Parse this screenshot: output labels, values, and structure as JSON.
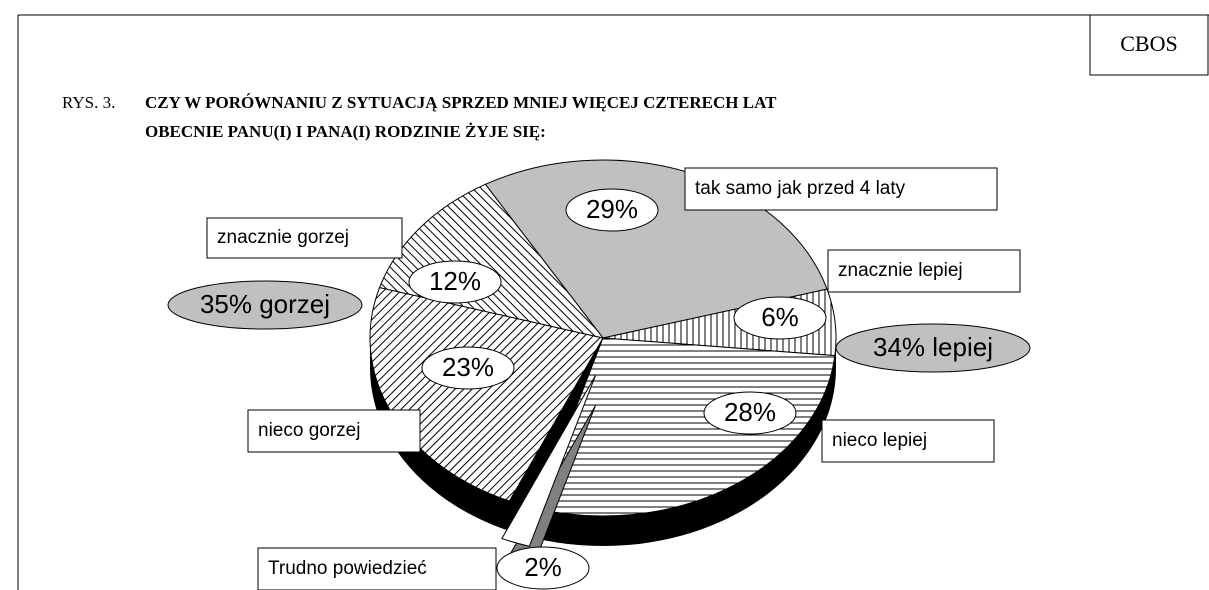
{
  "source": "CBOS",
  "figure_label": "RYS. 3.",
  "chart_data": {
    "type": "pie",
    "title": [
      "CZY W PORÓWNANIU Z SYTUACJĄ SPRZED MNIEJ WIĘCEJ CZTERECH LAT",
      "OBECNIE PANU(I) I PANA(I) RODZINIE ŻYJE SIĘ:"
    ],
    "categories": [
      "tak samo jak przed 4 laty",
      "znacznie lepiej",
      "nieco lepiej",
      "Trudno powiedzieć",
      "nieco gorzej",
      "znacznie gorzej"
    ],
    "values": [
      29,
      6,
      28,
      2,
      23,
      12
    ],
    "value_labels": [
      "29%",
      "6%",
      "28%",
      "2%",
      "23%",
      "12%"
    ],
    "fills": [
      "solid-gray",
      "vertical-lines",
      "horizontal-lines",
      "white",
      "diagonal-up",
      "diagonal-down"
    ],
    "exploded": "Trudno powiedzieć",
    "annotations": [
      "35% gorzej",
      "34% lepiej"
    ]
  }
}
